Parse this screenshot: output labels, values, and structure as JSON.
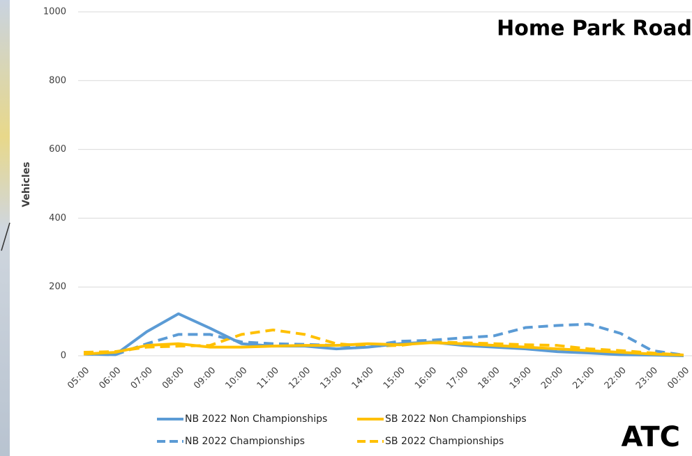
{
  "chart_data": {
    "type": "line",
    "title": "Home Park Road",
    "annotation": "ATC",
    "ylabel": "Vehicles",
    "categories": [
      "05:00",
      "06:00",
      "07:00",
      "08:00",
      "09:00",
      "10:00",
      "11:00",
      "12:00",
      "13:00",
      "14:00",
      "15:00",
      "16:00",
      "17:00",
      "18:00",
      "19:00",
      "20:00",
      "21:00",
      "22:00",
      "23:00",
      "00:00"
    ],
    "ylim": [
      0,
      1000
    ],
    "yticks": [
      0,
      200,
      400,
      600,
      800,
      1000
    ],
    "grid": true,
    "series": [
      {
        "name": "NB 2022 Non Championships",
        "color": "#5b9bd5",
        "dashed": false,
        "values": [
          5,
          3,
          70,
          122,
          80,
          35,
          28,
          28,
          20,
          25,
          35,
          40,
          30,
          25,
          20,
          12,
          8,
          3,
          2,
          0
        ]
      },
      {
        "name": "SB 2022 Non Championships",
        "color": "#ffc000",
        "dashed": false,
        "values": [
          5,
          10,
          30,
          35,
          25,
          25,
          28,
          30,
          30,
          35,
          32,
          38,
          35,
          30,
          25,
          20,
          15,
          10,
          5,
          2
        ]
      },
      {
        "name": "NB 2022 Championships",
        "color": "#5b9bd5",
        "dashed": true,
        "values": [
          5,
          3,
          35,
          62,
          62,
          40,
          35,
          33,
          30,
          28,
          42,
          45,
          52,
          58,
          82,
          88,
          92,
          65,
          15,
          2
        ]
      },
      {
        "name": "SB 2022 Championships",
        "color": "#ffc000",
        "dashed": true,
        "values": [
          10,
          12,
          25,
          28,
          30,
          62,
          75,
          62,
          35,
          28,
          30,
          40,
          38,
          35,
          32,
          30,
          20,
          15,
          8,
          2
        ]
      }
    ]
  }
}
